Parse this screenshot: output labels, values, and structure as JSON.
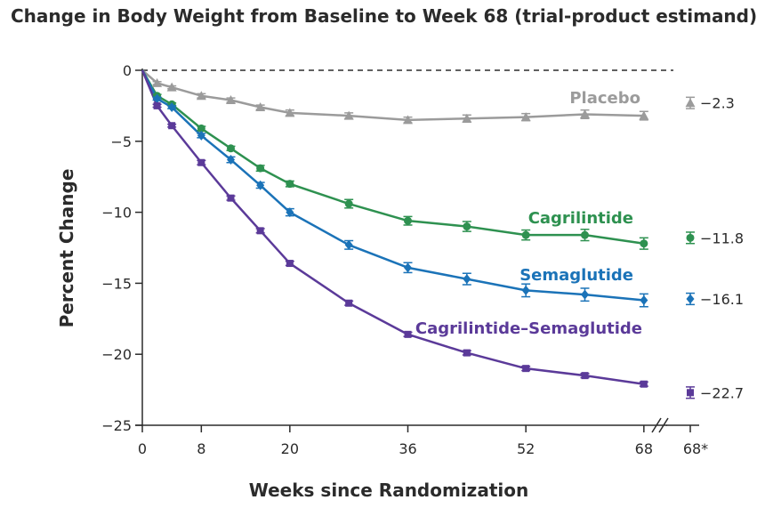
{
  "chart_data": {
    "type": "line",
    "title": "Change in Body Weight from Baseline to Week 68 (trial-product estimand)",
    "xlabel": "Weeks since Randomization",
    "ylabel": "Percent Change",
    "xlim": [
      0,
      72
    ],
    "ylim": [
      -25,
      0
    ],
    "x_ticks": [
      0,
      8,
      20,
      36,
      52,
      68
    ],
    "x_tick_labels": [
      "0",
      "8",
      "20",
      "36",
      "52",
      "68"
    ],
    "x_final_label": "68*",
    "y_ticks": [
      0,
      -5,
      -10,
      -15,
      -20,
      -25
    ],
    "y_tick_labels": [
      "0",
      "−5",
      "−10",
      "−15",
      "−20",
      "−25"
    ],
    "grid": false,
    "reference_line": 0,
    "series": [
      {
        "name": "Placebo",
        "color": "#9b9b9b",
        "marker": "triangle",
        "x": [
          0,
          2,
          4,
          8,
          12,
          16,
          20,
          28,
          36,
          44,
          52,
          60,
          68
        ],
        "values": [
          0,
          -0.9,
          -1.2,
          -1.8,
          -2.1,
          -2.6,
          -3.0,
          -3.2,
          -3.5,
          -3.4,
          -3.3,
          -3.1,
          -3.2
        ],
        "error": [
          0,
          0.1,
          0.1,
          0.15,
          0.15,
          0.15,
          0.2,
          0.2,
          0.2,
          0.25,
          0.25,
          0.3,
          0.3
        ],
        "final_label": "−2.3",
        "final_value": -2.3
      },
      {
        "name": "Cagrilintide",
        "color": "#2e9150",
        "marker": "circle",
        "x": [
          0,
          2,
          4,
          8,
          12,
          16,
          20,
          28,
          36,
          44,
          52,
          60,
          68
        ],
        "values": [
          0,
          -1.8,
          -2.4,
          -4.1,
          -5.5,
          -6.9,
          -8.0,
          -9.4,
          -10.6,
          -11.0,
          -11.6,
          -11.6,
          -12.2
        ],
        "error": [
          0,
          0.1,
          0.1,
          0.15,
          0.15,
          0.2,
          0.2,
          0.3,
          0.3,
          0.35,
          0.35,
          0.4,
          0.4
        ],
        "final_label": "−11.8",
        "final_value": -11.8
      },
      {
        "name": "Semaglutide",
        "color": "#1b73b8",
        "marker": "diamond",
        "x": [
          0,
          2,
          4,
          8,
          12,
          16,
          20,
          28,
          36,
          44,
          52,
          60,
          68
        ],
        "values": [
          0,
          -2.0,
          -2.6,
          -4.6,
          -6.3,
          -8.1,
          -10.0,
          -12.3,
          -13.9,
          -14.7,
          -15.5,
          -15.8,
          -16.2
        ],
        "error": [
          0,
          0.1,
          0.1,
          0.15,
          0.2,
          0.2,
          0.25,
          0.3,
          0.35,
          0.4,
          0.45,
          0.45,
          0.45
        ],
        "final_label": "−16.1",
        "final_value": -16.1
      },
      {
        "name": "Cagrilintide–Semaglutide",
        "color": "#5b3a99",
        "marker": "square",
        "x": [
          0,
          2,
          4,
          8,
          12,
          16,
          20,
          28,
          36,
          44,
          52,
          60,
          68
        ],
        "values": [
          0,
          -2.5,
          -3.9,
          -6.5,
          -9.0,
          -11.3,
          -13.6,
          -16.4,
          -18.6,
          -19.9,
          -21.0,
          -21.5,
          -22.1
        ],
        "error": [
          0,
          0.1,
          0.1,
          0.15,
          0.15,
          0.15,
          0.15,
          0.15,
          0.15,
          0.15,
          0.15,
          0.15,
          0.15
        ],
        "final_label": "−22.7",
        "final_value": -22.7
      }
    ]
  }
}
